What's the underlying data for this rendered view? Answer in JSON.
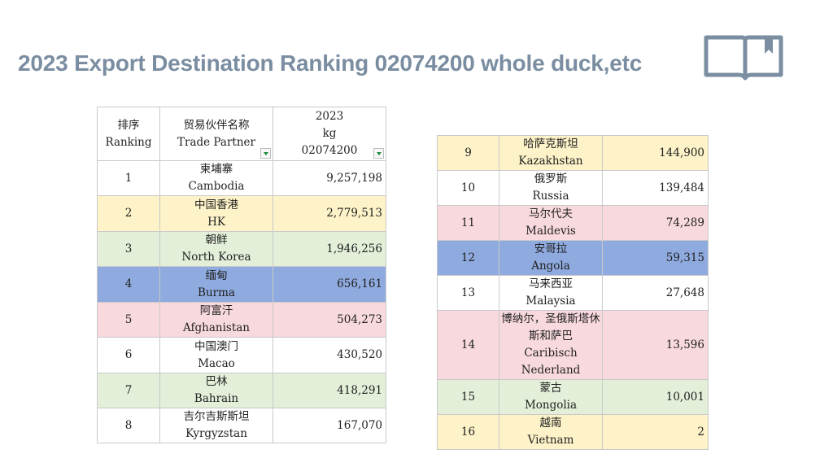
{
  "title": "2023 Export Destination Ranking 02074200 whole duck,etc",
  "icon": "open-book-icon",
  "header": {
    "ranking_cn": "排序",
    "ranking_en": "Ranking",
    "partner_cn": "贸易伙伴名称",
    "partner_en": "Trade Partner",
    "year": "2023",
    "unit": "kg",
    "code": "02074200"
  },
  "colors": {
    "yellow": "#fdf2c8",
    "green": "#e3efd9",
    "blue": "#8eaadf",
    "pink": "#f8d9de",
    "white": "#ffffff",
    "title": "#7a8da1"
  },
  "rows_left": [
    {
      "rank": "1",
      "cn": "柬埔寨",
      "en": "Cambodia",
      "value": "9,257,198",
      "color": "white"
    },
    {
      "rank": "2",
      "cn": "中国香港",
      "en": "HK",
      "value": "2,779,513",
      "color": "yellow"
    },
    {
      "rank": "3",
      "cn": "朝鲜",
      "en": "North Korea",
      "value": "1,946,256",
      "color": "green"
    },
    {
      "rank": "4",
      "cn": "缅甸",
      "en": "Burma",
      "value": "656,161",
      "color": "blue"
    },
    {
      "rank": "5",
      "cn": "阿富汗",
      "en": "Afghanistan",
      "value": "504,273",
      "color": "pink"
    },
    {
      "rank": "6",
      "cn": "中国澳门",
      "en": "Macao",
      "value": "430,520",
      "color": "white"
    },
    {
      "rank": "7",
      "cn": "巴林",
      "en": "Bahrain",
      "value": "418,291",
      "color": "green"
    },
    {
      "rank": "8",
      "cn": "吉尔吉斯斯坦",
      "en": "Kyrgyzstan",
      "value": "167,070",
      "color": "white"
    }
  ],
  "rows_right": [
    {
      "rank": "9",
      "cn": "哈萨克斯坦",
      "en": "Kazakhstan",
      "value": "144,900",
      "color": "yellow"
    },
    {
      "rank": "10",
      "cn": "俄罗斯",
      "en": "Russia",
      "value": "139,484",
      "color": "white"
    },
    {
      "rank": "11",
      "cn": "马尔代夫",
      "en": "Maldevis",
      "value": "74,289",
      "color": "pink"
    },
    {
      "rank": "12",
      "cn": "安哥拉",
      "en": "Angola",
      "value": "59,315",
      "color": "blue"
    },
    {
      "rank": "13",
      "cn": "马来西亚",
      "en": "Malaysia",
      "value": "27,648",
      "color": "white"
    },
    {
      "rank": "14",
      "cn": "博纳尔，圣俄斯塔休斯和萨巴",
      "en": "Caribisch Nederland",
      "value": "13,596",
      "color": "pink"
    },
    {
      "rank": "15",
      "cn": "蒙古",
      "en": "Mongolia",
      "value": "10,001",
      "color": "green"
    },
    {
      "rank": "16",
      "cn": "越南",
      "en": "Vietnam",
      "value": "2",
      "color": "yellow"
    }
  ]
}
